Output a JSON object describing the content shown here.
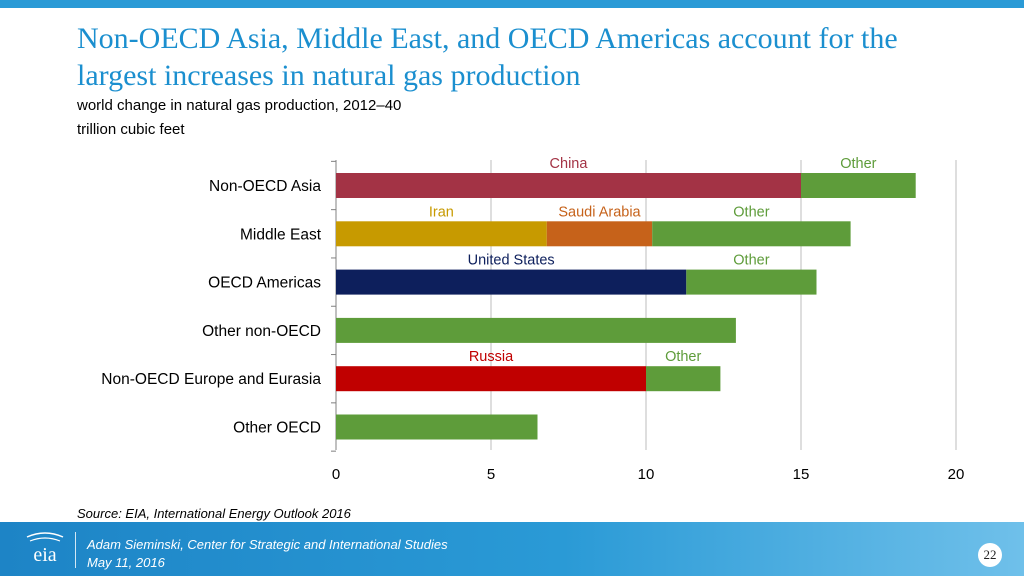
{
  "title": "Non-OECD Asia, Middle East, and OECD Americas account for the largest increases in natural gas production",
  "subtitle": "world change in natural gas production, 2012–40",
  "units": "trillion cubic feet",
  "source": "Source:  EIA, International Energy Outlook 2016",
  "footer": {
    "logo_text": "eia",
    "line1": "Adam Sieminski, Center for Strategic and International Studies",
    "line2": "May 11, 2016",
    "page": "22"
  },
  "colors": {
    "china": "#a33345",
    "other": "#5e9c3a",
    "iran": "#c79a00",
    "saudi": "#c6621a",
    "us": "#0d1f5c",
    "russia": "#c00000"
  },
  "chart_data": {
    "type": "bar",
    "orientation": "horizontal",
    "stacked": true,
    "xlim": [
      0,
      20
    ],
    "xticks": [
      0,
      5,
      10,
      15,
      20
    ],
    "grid": true,
    "categories": [
      "Non-OECD Asia",
      "Middle East",
      "OECD Americas",
      "Other non-OECD",
      "Non-OECD Europe and Eurasia",
      "Other OECD"
    ],
    "bars": [
      {
        "category": "Non-OECD Asia",
        "segments": [
          {
            "label": "China",
            "value": 15.0,
            "color": "#a33345",
            "label_color": "#a33345"
          },
          {
            "label": "Other",
            "value": 3.7,
            "color": "#5e9c3a",
            "label_color": "#5e9c3a"
          }
        ]
      },
      {
        "category": "Middle East",
        "segments": [
          {
            "label": "Iran",
            "value": 6.8,
            "color": "#c79a00",
            "label_color": "#c79a00"
          },
          {
            "label": "Saudi Arabia",
            "value": 3.4,
            "color": "#c6621a",
            "label_color": "#c6621a"
          },
          {
            "label": "Other",
            "value": 6.4,
            "color": "#5e9c3a",
            "label_color": "#5e9c3a"
          }
        ]
      },
      {
        "category": "OECD Americas",
        "segments": [
          {
            "label": "United States",
            "value": 11.3,
            "color": "#0d1f5c",
            "label_color": "#0d1f5c"
          },
          {
            "label": "Other",
            "value": 4.2,
            "color": "#5e9c3a",
            "label_color": "#5e9c3a"
          }
        ]
      },
      {
        "category": "Other non-OECD",
        "segments": [
          {
            "label": "",
            "value": 12.9,
            "color": "#5e9c3a",
            "label_color": "#5e9c3a"
          }
        ]
      },
      {
        "category": "Non-OECD Europe and Eurasia",
        "segments": [
          {
            "label": "Russia",
            "value": 10.0,
            "color": "#c00000",
            "label_color": "#c00000"
          },
          {
            "label": "Other",
            "value": 2.4,
            "color": "#5e9c3a",
            "label_color": "#5e9c3a"
          }
        ]
      },
      {
        "category": "Other OECD",
        "segments": [
          {
            "label": "",
            "value": 6.5,
            "color": "#5e9c3a",
            "label_color": "#5e9c3a"
          }
        ]
      }
    ]
  }
}
